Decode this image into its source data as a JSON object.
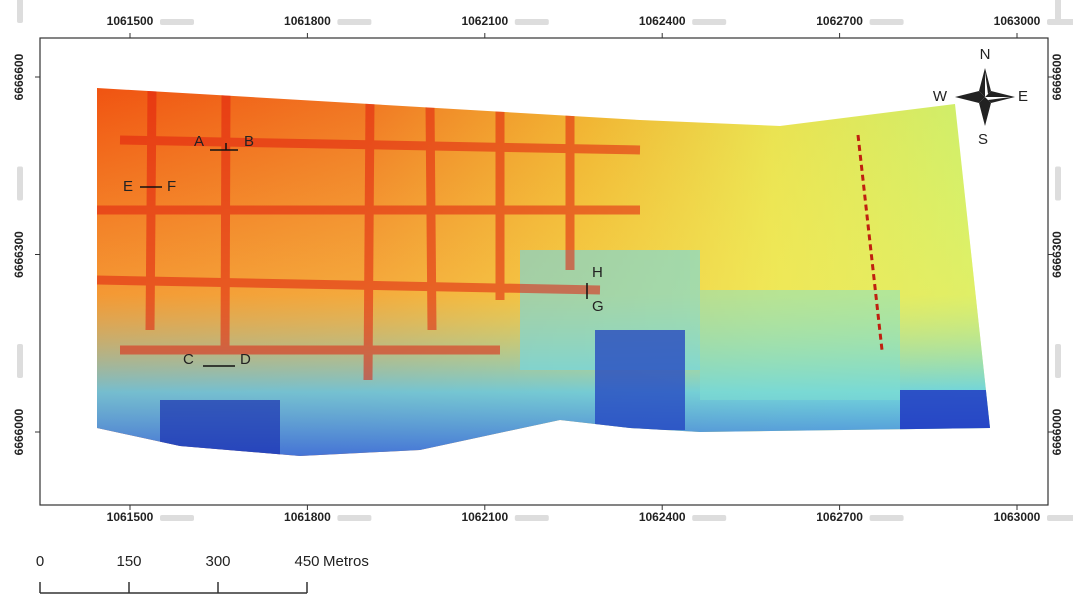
{
  "map": {
    "x_ticks": [
      1061500,
      1061800,
      1062100,
      1062400,
      1062700,
      1063000
    ],
    "y_ticks": [
      6666600,
      6666300,
      6666000
    ],
    "profiles": [
      {
        "start": "A",
        "end": "B"
      },
      {
        "start": "E",
        "end": "F"
      },
      {
        "start": "C",
        "end": "D"
      },
      {
        "start": "H",
        "end": "G"
      }
    ],
    "compass": {
      "north": "N",
      "east": "E",
      "south": "S",
      "west": "W"
    },
    "scale_bar": {
      "ticks": [
        0,
        150,
        300,
        450
      ],
      "unit": "Metros"
    }
  }
}
